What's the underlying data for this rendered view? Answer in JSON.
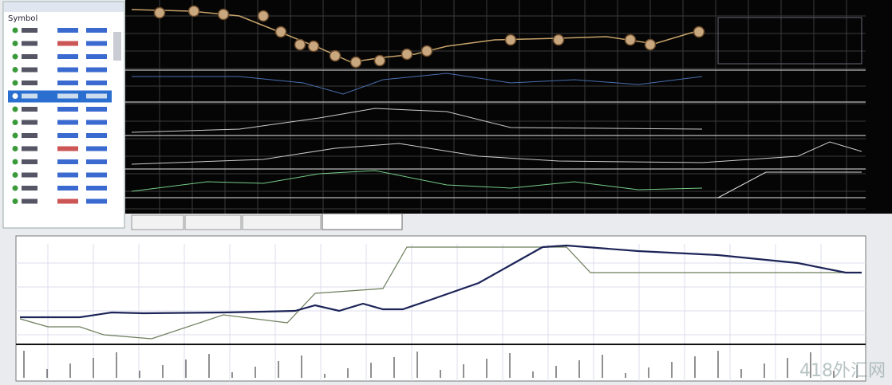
{
  "sidebar": {
    "header": "Symbol"
  },
  "watermark": "418外汇网"
}
